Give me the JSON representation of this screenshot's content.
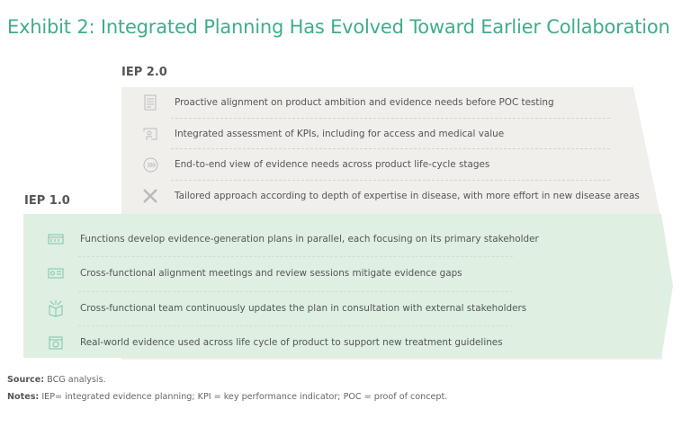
{
  "title": "Exhibit 2: Integrated Planning Has Evolved Toward Earlier Collaboration",
  "iep2": {
    "label": "IEP 2.0",
    "items": [
      {
        "icon": "document-icon",
        "text": "Proactive alignment on product ambition and evidence needs before POC testing"
      },
      {
        "icon": "presentation-icon",
        "text": "Integrated assessment of KPIs, including for access and medical value"
      },
      {
        "icon": "fast-forward-circle-icon",
        "text": "End-to-end view of evidence needs across product life-cycle stages"
      },
      {
        "icon": "tools-icon",
        "text": "Tailored approach according to depth of expertise in disease, with more effort in new disease areas"
      }
    ]
  },
  "iep1": {
    "label": "IEP 1.0",
    "items": [
      {
        "icon": "parallel-plans-icon",
        "text": "Functions develop evidence-generation plans in parallel, each focusing on its primary stakeholder"
      },
      {
        "icon": "meeting-card-icon",
        "text": "Cross-functional alignment meetings and review sessions mitigate evidence gaps"
      },
      {
        "icon": "team-box-icon",
        "text": "Cross-functional team continuously updates the plan in consultation with external stakeholders"
      },
      {
        "icon": "calendar-check-icon",
        "text": "Real-world evidence used across life cycle of product to support new treatment guidelines"
      }
    ]
  },
  "footer": {
    "source_label": "Source:",
    "source_text": "BCG analysis.",
    "notes_label": "Notes:",
    "notes_text": "IEP= integrated evidence planning; KPI = key performance indicator; POC = proof of concept."
  },
  "colors": {
    "title": "#3fad8c",
    "gray_band": "#f0efec",
    "green_band": "#dfefe2"
  }
}
